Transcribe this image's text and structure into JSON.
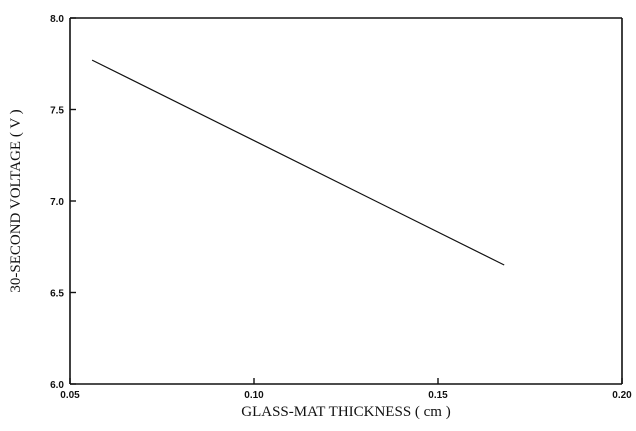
{
  "chart_data": {
    "type": "line",
    "title": "",
    "xlabel": "GLASS-MAT THICKNESS ( cm )",
    "ylabel": "30-SECOND VOLTAGE ( V )",
    "xlim": [
      0.05,
      0.2
    ],
    "ylim": [
      6.0,
      8.0
    ],
    "xticks": [
      "0.05",
      "0.10",
      "0.15",
      "0.20"
    ],
    "yticks": [
      "6.0",
      "6.5",
      "7.0",
      "7.5",
      "8.0"
    ],
    "grid": false,
    "series": [
      {
        "x": [
          0.056,
          0.168
        ],
        "y": [
          7.77,
          6.65
        ]
      }
    ]
  }
}
